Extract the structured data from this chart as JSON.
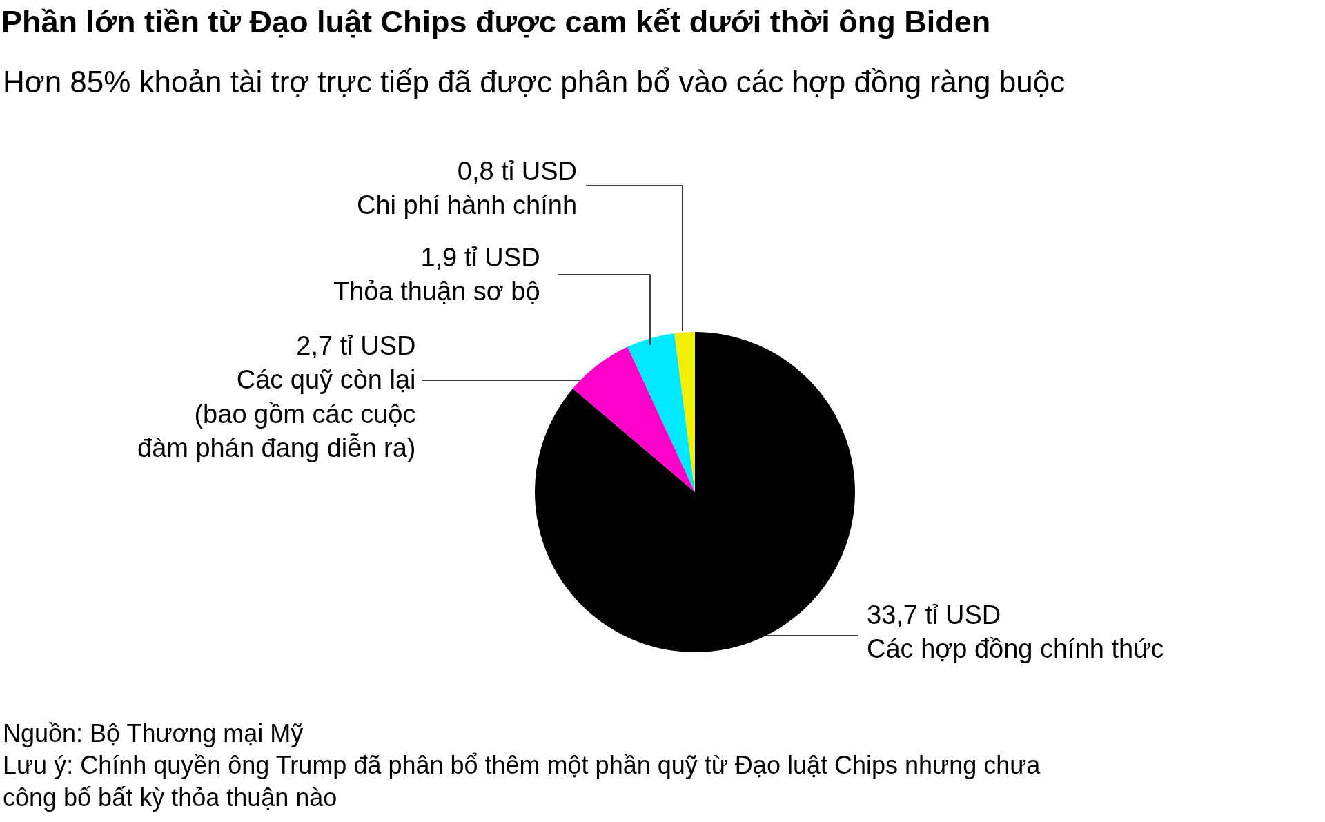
{
  "chart_data": {
    "type": "pie",
    "title": "Phần lớn tiền từ Đạo luật Chips được cam kết dưới thời ông Biden",
    "subtitle": "Hơn 85% khoản tài trợ trực tiếp đã được phân bổ vào các hợp đồng ràng buộc",
    "categories": [
      "Các hợp đồng chính thức",
      "Các quỹ còn lại\n(bao gồm các cuộc\nđàm phán đang diễn ra)",
      "Thỏa thuận sơ bộ",
      "Chi phí hành chính"
    ],
    "values": [
      33.7,
      2.7,
      1.9,
      0.8
    ],
    "value_labels": [
      "33,7 tỉ USD",
      "2,7 tỉ USD",
      "1,9 tỉ USD",
      "0,8 tỉ USD"
    ],
    "colors": [
      "#000000",
      "#ff00c8",
      "#00e8ff",
      "#f2f200"
    ],
    "legend": false,
    "annotations": [
      "Nguồn: Bộ Thương mại Mỹ",
      "Lưu ý: Chính quyền ông Trump đã phân bổ thêm một phần quỹ từ Đạo luật Chips nhưng chưa\ncông bố bất kỳ thỏa thuận nào"
    ]
  }
}
